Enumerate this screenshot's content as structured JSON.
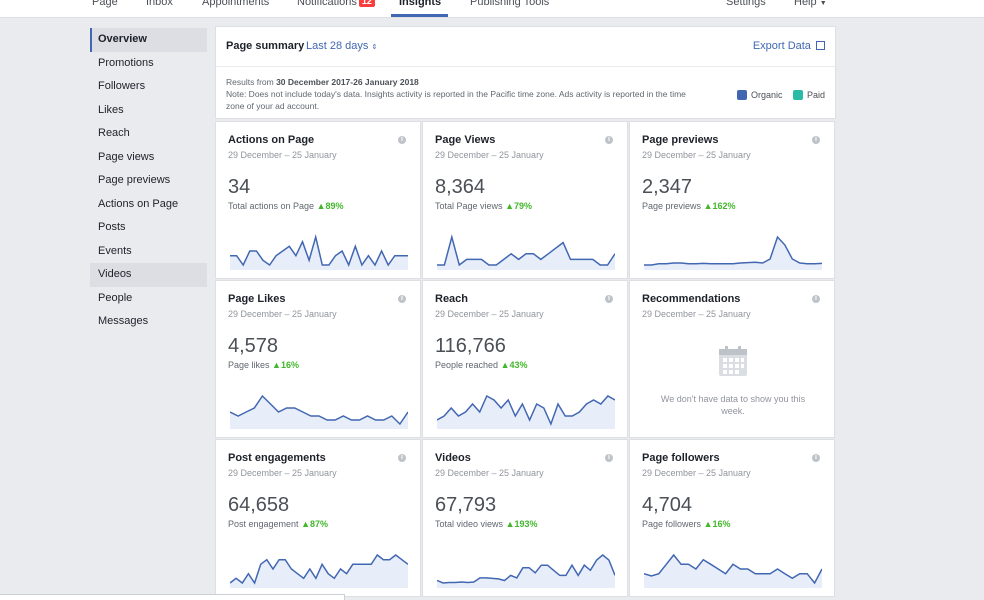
{
  "topnav": {
    "tabs": [
      {
        "label": "Page"
      },
      {
        "label": "Inbox"
      },
      {
        "label": "Appointments"
      },
      {
        "label": "Notifications",
        "badge": "12"
      },
      {
        "label": "Insights"
      },
      {
        "label": "Publishing Tools"
      }
    ],
    "right": [
      {
        "label": "Settings"
      },
      {
        "label": "Help"
      }
    ]
  },
  "sidebar": {
    "items": [
      {
        "label": "Overview"
      },
      {
        "label": "Promotions"
      },
      {
        "label": "Followers"
      },
      {
        "label": "Likes"
      },
      {
        "label": "Reach"
      },
      {
        "label": "Page views"
      },
      {
        "label": "Page previews"
      },
      {
        "label": "Actions on Page"
      },
      {
        "label": "Posts"
      },
      {
        "label": "Events"
      },
      {
        "label": "Videos"
      },
      {
        "label": "People"
      },
      {
        "label": "Messages"
      }
    ]
  },
  "summary": {
    "title": "Page summary",
    "range": "Last 28 days",
    "export": "Export Data",
    "results_prefix": "Results from ",
    "results_range": "30 December 2017-26 January 2018",
    "note": "Note: Does not include today's data. Insights activity is reported in the Pacific time zone. Ads activity is reported in the time zone of your ad account.",
    "legend": [
      {
        "label": "Organic",
        "color": "#4267b2"
      },
      {
        "label": "Paid",
        "color": "#2abba7"
      }
    ]
  },
  "cards": [
    {
      "title": "Actions on Page",
      "date": "29 December – 25 January",
      "value": "34",
      "sub": "Total actions on Page",
      "change": "89%",
      "series": [
        3,
        3,
        1,
        4,
        4,
        2,
        1,
        3,
        4,
        5,
        3,
        6,
        2,
        7,
        1,
        1,
        3,
        4,
        1,
        5,
        1,
        3,
        1,
        4,
        1,
        3,
        3,
        3
      ]
    },
    {
      "title": "Page Views",
      "date": "29 December – 25 January",
      "value": "8,364",
      "sub": "Total Page views",
      "change": "79%",
      "series": [
        3,
        3,
        8,
        3,
        4,
        4,
        4,
        3,
        3,
        4,
        5,
        4,
        5,
        5,
        4,
        5,
        6,
        7,
        4,
        4,
        4,
        4,
        3,
        3,
        5
      ]
    },
    {
      "title": "Page previews",
      "date": "29 December – 25 January",
      "value": "2,347",
      "sub": "Page previews",
      "change": "162%",
      "series": [
        1,
        1,
        1.3,
        1.3,
        1.5,
        1.5,
        1.3,
        1.3,
        1.4,
        1.3,
        1.3,
        1.3,
        1.3,
        1.5,
        1.6,
        1.7,
        1.5,
        2.5,
        8,
        6,
        2.5,
        1.5,
        1.3,
        1.3,
        1.4
      ]
    },
    {
      "title": "Page Likes",
      "date": "29 December – 25 January",
      "value": "4,578",
      "sub": "Page likes",
      "change": "16%",
      "series": [
        4,
        3,
        4,
        5,
        8,
        6,
        4,
        5,
        5,
        4,
        3,
        3,
        2,
        2,
        3,
        2,
        2,
        3,
        2,
        2,
        3,
        1,
        4
      ]
    },
    {
      "title": "Reach",
      "date": "29 December – 25 January",
      "value": "116,766",
      "sub": "People reached",
      "change": "43%",
      "series": [
        2,
        3,
        5,
        3,
        4,
        6,
        4,
        8,
        7,
        5,
        7,
        3,
        6,
        2,
        6,
        5,
        1,
        6,
        3,
        3,
        4,
        6,
        7,
        6,
        8,
        7
      ]
    },
    {
      "title": "Recommendations",
      "date": "29 December – 25 January",
      "empty": "We don't have data to show you this week."
    },
    {
      "title": "Post engagements",
      "date": "29 December – 25 January",
      "value": "64,658",
      "sub": "Post engagement",
      "change": "87%",
      "series": [
        2,
        3,
        2,
        4,
        2,
        6,
        7,
        5,
        7,
        7,
        5,
        4,
        3,
        5,
        3,
        6,
        4,
        3,
        5,
        4,
        6,
        6,
        6,
        6,
        8,
        7,
        7,
        8,
        7,
        6
      ]
    },
    {
      "title": "Videos",
      "date": "29 December – 25 January",
      "value": "67,793",
      "sub": "Total video views",
      "change": "193%",
      "series": [
        2,
        1.5,
        1.6,
        1.6,
        1.7,
        1.6,
        1.7,
        2.5,
        2.5,
        2.4,
        2.3,
        2,
        3,
        2.5,
        4.5,
        4.5,
        3.5,
        5,
        5,
        4,
        3,
        3,
        5,
        3,
        5,
        4,
        6,
        7,
        6,
        3
      ]
    },
    {
      "title": "Page followers",
      "date": "29 December – 25 January",
      "value": "4,704",
      "sub": "Page followers",
      "change": "16%",
      "series": [
        3,
        2.5,
        3,
        5,
        7,
        5,
        5,
        4,
        6,
        5,
        4,
        3,
        5,
        4,
        4,
        3,
        3,
        3,
        4,
        3,
        2,
        3,
        3,
        1,
        4
      ]
    }
  ]
}
